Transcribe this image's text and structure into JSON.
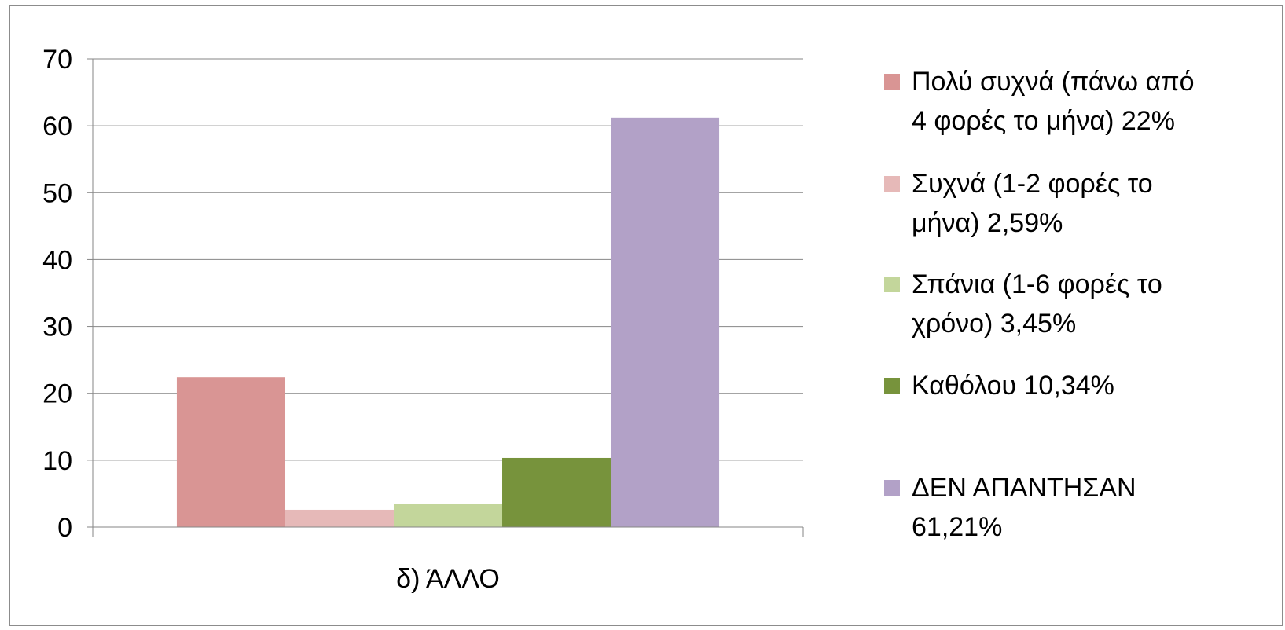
{
  "chart_data": {
    "type": "bar",
    "categories": [
      "δ) ΆΛΛΟ"
    ],
    "series": [
      {
        "name": "Πολύ συχνά (πάνω από 4 φορές το μήνα) 22%",
        "legend_lines": [
          "Πολύ συχνά (πάνω από",
          "4 φορές το μήνα) 22%"
        ],
        "values": [
          22.41
        ],
        "color": "#d99594"
      },
      {
        "name": "Συχνά (1-2 φορές το μήνα) 2,59%",
        "legend_lines": [
          "Συχνά (1-2 φορές το",
          "μήνα) 2,59%"
        ],
        "values": [
          2.59
        ],
        "color": "#e6b9b8"
      },
      {
        "name": "Σπάνια (1-6 φορές το χρόνο) 3,45%",
        "legend_lines": [
          "Σπάνια (1-6 φορές το",
          "χρόνο) 3,45%"
        ],
        "values": [
          3.45
        ],
        "color": "#c3d69b"
      },
      {
        "name": "Καθόλου 10,34%",
        "legend_lines": [
          "Καθόλου 10,34%"
        ],
        "values": [
          10.34
        ],
        "color": "#77933c"
      },
      {
        "name": "ΔΕΝ ΑΠΑΝΤΗΣΑΝ 61,21%",
        "legend_lines": [
          "ΔΕΝ ΑΠΑΝΤΗΣΑΝ",
          "61,21%"
        ],
        "values": [
          61.21
        ],
        "color": "#b2a1c7"
      }
    ],
    "ylim": [
      0,
      70
    ],
    "yticks": [
      0,
      10,
      20,
      30,
      40,
      50,
      60,
      70
    ],
    "grid": true,
    "legend_position": "right",
    "gridline_color": "#868686",
    "axis_color": "#868686"
  }
}
